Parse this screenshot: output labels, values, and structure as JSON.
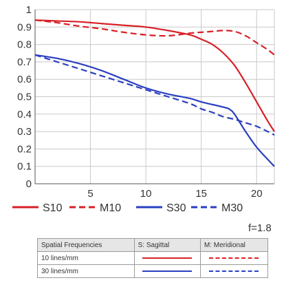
{
  "chart_data": {
    "type": "line",
    "title": "",
    "xlabel": "",
    "ylabel": "",
    "xlim": [
      0,
      21.6
    ],
    "ylim": [
      0,
      1
    ],
    "xticks": [
      5,
      10,
      15,
      20
    ],
    "yticks": [
      0,
      0.1,
      0.2,
      0.3,
      0.4,
      0.5,
      0.6,
      0.7,
      0.8,
      0.9,
      1
    ],
    "grid": true,
    "series": [
      {
        "name": "S10",
        "color": "#d81f26",
        "style": "solid",
        "x": [
          0,
          2,
          4,
          6,
          8,
          10,
          12,
          14,
          15,
          16,
          17,
          18,
          19,
          20,
          21,
          21.6
        ],
        "y": [
          0.94,
          0.935,
          0.93,
          0.92,
          0.91,
          0.9,
          0.88,
          0.855,
          0.83,
          0.8,
          0.75,
          0.68,
          0.58,
          0.47,
          0.36,
          0.3
        ]
      },
      {
        "name": "M10",
        "color": "#d81f26",
        "style": "dashed",
        "x": [
          0,
          2,
          4,
          6,
          8,
          10,
          12,
          14,
          15,
          16,
          17,
          18,
          19,
          20,
          21,
          21.6
        ],
        "y": [
          0.94,
          0.925,
          0.905,
          0.89,
          0.87,
          0.855,
          0.85,
          0.865,
          0.87,
          0.875,
          0.88,
          0.875,
          0.85,
          0.81,
          0.77,
          0.74
        ]
      },
      {
        "name": "S30",
        "color": "#2a3fc0",
        "style": "solid",
        "x": [
          0,
          2,
          4,
          6,
          8,
          10,
          12,
          14,
          15,
          16,
          17,
          17.5,
          18,
          19,
          20,
          21,
          21.6
        ],
        "y": [
          0.74,
          0.72,
          0.69,
          0.65,
          0.6,
          0.55,
          0.515,
          0.49,
          0.47,
          0.455,
          0.44,
          0.43,
          0.4,
          0.3,
          0.21,
          0.14,
          0.1
        ]
      },
      {
        "name": "M30",
        "color": "#2a3fc0",
        "style": "dashed",
        "x": [
          0,
          2,
          4,
          6,
          8,
          10,
          12,
          14,
          15,
          16,
          17,
          18,
          19,
          20,
          21,
          21.6
        ],
        "y": [
          0.74,
          0.7,
          0.66,
          0.62,
          0.58,
          0.54,
          0.5,
          0.46,
          0.43,
          0.41,
          0.385,
          0.37,
          0.35,
          0.33,
          0.3,
          0.28
        ]
      }
    ]
  },
  "aperture": "f=1.8",
  "key_table": {
    "headers": [
      "Spatial Frequencies",
      "S: Sagittal",
      "M: Meridional"
    ],
    "rows": [
      {
        "label": "10 lines/mm",
        "color": "#d81f26"
      },
      {
        "label": "30 lines/mm",
        "color": "#2a3fc0"
      }
    ]
  }
}
